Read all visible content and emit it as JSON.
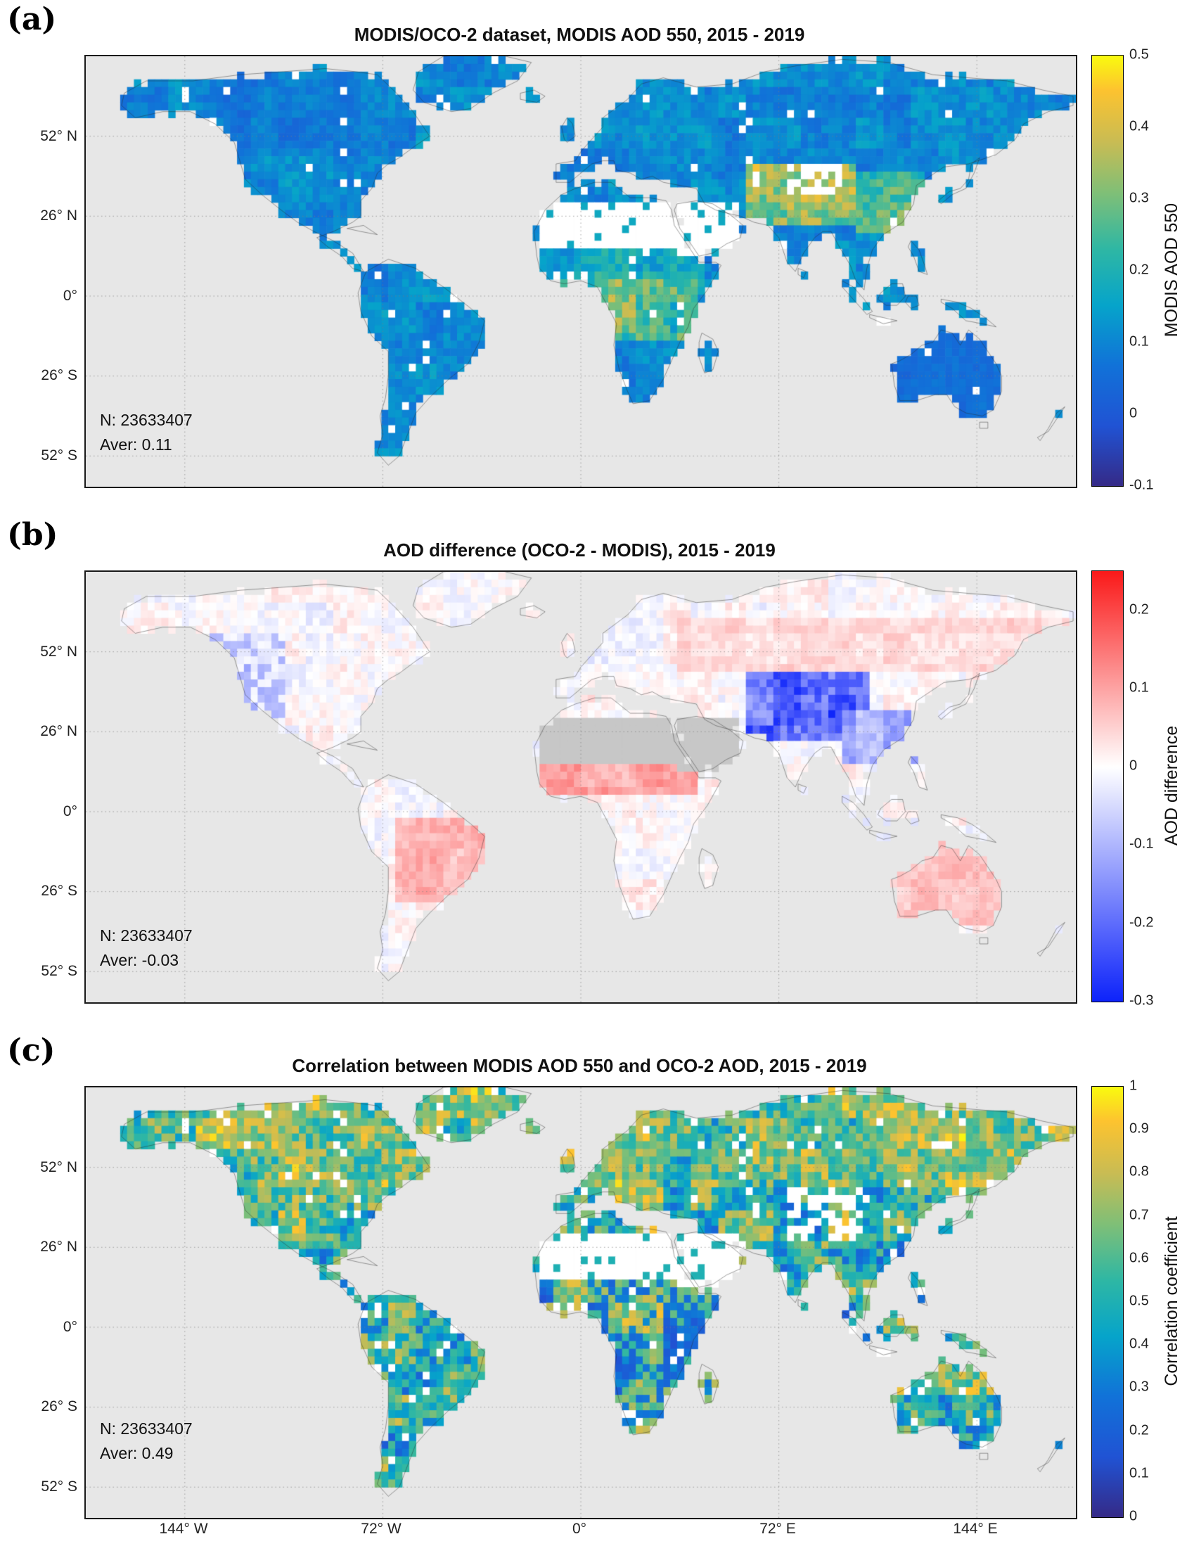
{
  "figure": {
    "panels": [
      {
        "label": "(a)",
        "title": "MODIS/OCO-2 dataset, MODIS AOD 550, 2015 - 2019",
        "n_label": "N: 23633407",
        "aver_label": "Aver: 0.11",
        "colorbar": {
          "label": "MODIS AOD 550"
        }
      },
      {
        "label": "(b)",
        "title": "AOD difference (OCO-2 - MODIS), 2015 - 2019",
        "n_label": "N: 23633407",
        "aver_label": "Aver: -0.03",
        "colorbar": {
          "label": "AOD difference"
        }
      },
      {
        "label": "(c)",
        "title": "Correlation between MODIS AOD 550 and OCO-2 AOD, 2015 - 2019",
        "n_label": "N: 23633407",
        "aver_label": "Aver: 0.49",
        "colorbar": {
          "label": "Correlation coefficient"
        }
      }
    ],
    "y_ticks": [
      "52° N",
      "26° N",
      "0°",
      "26° S",
      "52° S"
    ],
    "x_ticks": [
      "144° W",
      "72° W",
      "0°",
      "72° E",
      "144° E"
    ]
  },
  "chart_data": [
    {
      "type": "heatmap",
      "title": "MODIS/OCO-2 dataset, MODIS AOD 550, 2015 - 2019",
      "projection": "equirectangular world map, gridded ~2 deg cells, land only",
      "colormap": "parula",
      "colorbar_label": "MODIS AOD 550",
      "colorbar_range": [
        -0.1,
        0.5
      ],
      "colorbar_ticks": [
        -0.1,
        0,
        0.1,
        0.2,
        0.3,
        0.4,
        0.5
      ],
      "lat_ticks": [
        "52 N",
        "26 N",
        "0",
        "26 S",
        "52 S"
      ],
      "lon_ticks": [
        "144 W",
        "72 W",
        "0",
        "72 E",
        "144 E"
      ],
      "stats": {
        "N": 23633407,
        "mean": 0.11
      },
      "notes": "Low AOD 0-0.15 (blue) over most land; elevated 0.3-0.5 (yellow) over South/East Asia, Sahel and central Africa; Sahara, Arabia and Taklamakan mostly white (no retrieval); oceans gray (not sampled); Australia very low AOD."
    },
    {
      "type": "heatmap",
      "title": "AOD difference (OCO-2 - MODIS), 2015 - 2019",
      "projection": "equirectangular world map, gridded ~2 deg cells, land only",
      "colormap": "blue-white-red diverging",
      "colorbar_label": "AOD difference",
      "colorbar_range": [
        -0.3,
        0.25
      ],
      "colorbar_ticks": [
        -0.3,
        -0.2,
        -0.1,
        0,
        0.1,
        0.2
      ],
      "lat_ticks": [
        "52 N",
        "26 N",
        "0",
        "26 S",
        "52 S"
      ],
      "lon_ticks": [
        "144 W",
        "72 W",
        "0",
        "72 E",
        "144 E"
      ],
      "stats": {
        "N": 23633407,
        "mean": -0.03
      },
      "notes": "Near zero (white/pale) over most regions; strongly negative -0.2 to -0.3 (deep blue) over High Mountain Asia, South Asia and China; weakly positive ~+0.1 (pink) over Sahel, interior South America, Australia and boreal Eurasia; Sahara/Arabia gray (no data)."
    },
    {
      "type": "heatmap",
      "title": "Correlation between MODIS AOD 550 and OCO-2 AOD, 2015 - 2019",
      "projection": "equirectangular world map, gridded ~2 deg cells, land only",
      "colormap": "parula",
      "colorbar_label": "Correlation coefficient",
      "colorbar_range": [
        0,
        1
      ],
      "colorbar_ticks": [
        0,
        0.1,
        0.2,
        0.3,
        0.4,
        0.5,
        0.6,
        0.7,
        0.8,
        0.9,
        1
      ],
      "lat_ticks": [
        "52 N",
        "26 N",
        "0",
        "26 S",
        "52 S"
      ],
      "lon_ticks": [
        "144 W",
        "72 W",
        "0",
        "72 E",
        "144 E"
      ],
      "stats": {
        "N": 23633407,
        "mean": 0.49
      },
      "notes": "Noisy mosaic of correlations 0-1; higher values 0.6-0.9 (yellow/green) at northern high latitudes; mixed 0.2-0.7 over tropics and mid-latitudes; white gaps over Sahara and Tibetan Plateau where data are insufficient."
    }
  ]
}
